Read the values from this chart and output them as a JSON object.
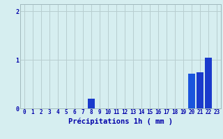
{
  "hours": [
    0,
    1,
    2,
    3,
    4,
    5,
    6,
    7,
    8,
    9,
    10,
    11,
    12,
    13,
    14,
    15,
    16,
    17,
    18,
    19,
    20,
    21,
    22,
    23
  ],
  "values": [
    0,
    0,
    0,
    0,
    0,
    0,
    0,
    0,
    0.2,
    0,
    0,
    0,
    0,
    0,
    0,
    0,
    0,
    0,
    0,
    0,
    0.72,
    0.75,
    1.05,
    0
  ],
  "bar_colors": [
    "#1a3acc",
    "#1a3acc",
    "#1a3acc",
    "#1a3acc",
    "#1a3acc",
    "#1a3acc",
    "#1a3acc",
    "#1a3acc",
    "#1a3acc",
    "#1a3acc",
    "#1a3acc",
    "#1a3acc",
    "#1a3acc",
    "#1a3acc",
    "#1a3acc",
    "#1a3acc",
    "#1a3acc",
    "#1a3acc",
    "#1a3acc",
    "#1a3acc",
    "#1a55dd",
    "#1a3acc",
    "#1a3acc",
    "#1a3acc"
  ],
  "background_color": "#d6eef0",
  "grid_color": "#b8cdd0",
  "text_color": "#0000aa",
  "xlabel": "Précipitations 1h ( mm )",
  "ylim": [
    0,
    2.15
  ],
  "yticks": [
    0,
    1,
    2
  ],
  "xlabel_fontsize": 7.5,
  "tick_fontsize": 5.5
}
